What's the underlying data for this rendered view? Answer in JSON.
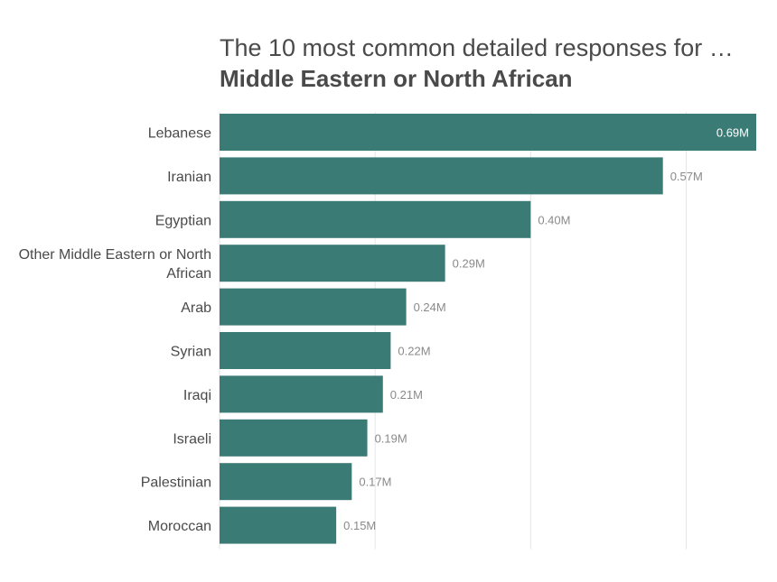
{
  "chart_data": {
    "type": "bar",
    "orientation": "horizontal",
    "title": "The 10 most common detailed responses for …",
    "subtitle": "Middle Eastern or North African",
    "categories": [
      [
        "Lebanese"
      ],
      [
        "Iranian"
      ],
      [
        "Egyptian"
      ],
      [
        "Other Middle Eastern or North",
        "African"
      ],
      [
        "Arab"
      ],
      [
        "Syrian"
      ],
      [
        "Iraqi"
      ],
      [
        "Israeli"
      ],
      [
        "Palestinian"
      ],
      [
        "Moroccan"
      ]
    ],
    "values": [
      0.69,
      0.57,
      0.4,
      0.29,
      0.24,
      0.22,
      0.21,
      0.19,
      0.17,
      0.15
    ],
    "value_labels": [
      "0.69M",
      "0.57M",
      "0.40M",
      "0.29M",
      "0.24M",
      "0.22M",
      "0.21M",
      "0.19M",
      "0.17M",
      "0.15M"
    ],
    "xlim": [
      0,
      0.69
    ],
    "gridlines": [
      0.2,
      0.4,
      0.6
    ],
    "grid": true,
    "bar_color": "#3b7b76"
  }
}
